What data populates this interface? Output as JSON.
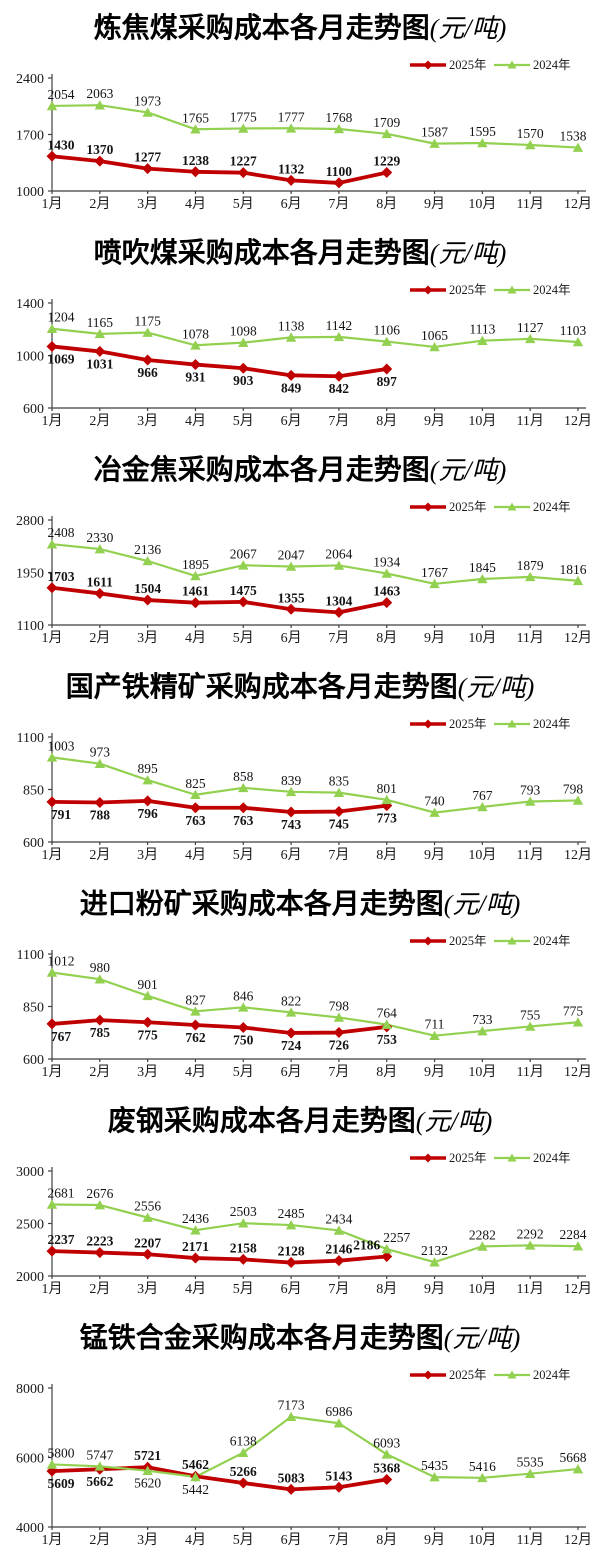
{
  "months": [
    "1月",
    "2月",
    "3月",
    "4月",
    "5月",
    "6月",
    "7月",
    "8月",
    "9月",
    "10月",
    "11月",
    "12月"
  ],
  "legend": {
    "series_2025": "2025年",
    "series_2024": "2024年"
  },
  "colors": {
    "red_2025": "#c00000",
    "green_2024": "#92d050",
    "axis": "#3f3f3f",
    "label_text": "#141414"
  },
  "chart_data": [
    {
      "type": "line",
      "title": "炼焦煤采购成本各月走势图",
      "unit": "(元/吨)",
      "ylabel": "元/吨",
      "ylim": [
        1000,
        2400
      ],
      "yticks": [
        2400,
        1700,
        1000
      ],
      "grid": false,
      "legend_position": "top-right",
      "series": [
        {
          "name": "2025年",
          "color": "#c00000",
          "marker": "diamond",
          "bold_labels": true,
          "label_pos": "above",
          "values": [
            1430,
            1370,
            1277,
            1238,
            1227,
            1132,
            1100,
            1229
          ]
        },
        {
          "name": "2024年",
          "color": "#92d050",
          "marker": "triangle",
          "bold_labels": false,
          "label_pos": "above",
          "values": [
            2054,
            2063,
            1973,
            1765,
            1775,
            1777,
            1768,
            1709,
            1587,
            1595,
            1570,
            1538
          ]
        }
      ]
    },
    {
      "type": "line",
      "title": "喷吹煤采购成本各月走势图",
      "unit": "(元/吨)",
      "ylabel": "元/吨",
      "ylim": [
        600,
        1400
      ],
      "yticks": [
        1400,
        1000,
        600
      ],
      "grid": false,
      "legend_position": "top-right",
      "series": [
        {
          "name": "2025年",
          "color": "#c00000",
          "marker": "diamond",
          "bold_labels": true,
          "label_pos": "below",
          "values": [
            1069,
            1031,
            966,
            931,
            903,
            849,
            842,
            897
          ]
        },
        {
          "name": "2024年",
          "color": "#92d050",
          "marker": "triangle",
          "bold_labels": false,
          "label_pos": "above",
          "values": [
            1204,
            1165,
            1175,
            1078,
            1098,
            1138,
            1142,
            1106,
            1065,
            1113,
            1127,
            1103
          ]
        }
      ]
    },
    {
      "type": "line",
      "title": "冶金焦采购成本各月走势图",
      "unit": "(元/吨)",
      "ylabel": "元/吨",
      "ylim": [
        1100,
        2800
      ],
      "yticks": [
        2800,
        1950,
        1100
      ],
      "grid": false,
      "legend_position": "top-right",
      "series": [
        {
          "name": "2025年",
          "color": "#c00000",
          "marker": "diamond",
          "bold_labels": true,
          "label_pos": "above",
          "values": [
            1703,
            1611,
            1504,
            1461,
            1475,
            1355,
            1304,
            1463
          ]
        },
        {
          "name": "2024年",
          "color": "#92d050",
          "marker": "triangle",
          "bold_labels": false,
          "label_pos": "above",
          "values": [
            2408,
            2330,
            2136,
            1895,
            2067,
            2047,
            2064,
            1934,
            1767,
            1845,
            1879,
            1816
          ]
        }
      ]
    },
    {
      "type": "line",
      "title": "国产铁精矿采购成本各月走势图",
      "unit": "(元/吨)",
      "ylabel": "元/吨",
      "ylim": [
        600,
        1100
      ],
      "yticks": [
        1100,
        850,
        600
      ],
      "grid": false,
      "legend_position": "top-right",
      "series": [
        {
          "name": "2025年",
          "color": "#c00000",
          "marker": "diamond",
          "bold_labels": true,
          "label_pos": "below",
          "values": [
            791,
            788,
            796,
            763,
            763,
            743,
            745,
            773
          ]
        },
        {
          "name": "2024年",
          "color": "#92d050",
          "marker": "triangle",
          "bold_labels": false,
          "label_pos": "above",
          "values": [
            1003,
            973,
            895,
            825,
            858,
            839,
            835,
            801,
            740,
            767,
            793,
            798
          ]
        }
      ]
    },
    {
      "type": "line",
      "title": "进口粉矿采购成本各月走势图",
      "unit": "(元/吨)",
      "ylabel": "元/吨",
      "ylim": [
        600,
        1100
      ],
      "yticks": [
        1100,
        850,
        600
      ],
      "grid": false,
      "legend_position": "top-right",
      "series": [
        {
          "name": "2025年",
          "color": "#c00000",
          "marker": "diamond",
          "bold_labels": true,
          "label_pos": "below",
          "values": [
            767,
            785,
            775,
            762,
            750,
            724,
            726,
            753
          ]
        },
        {
          "name": "2024年",
          "color": "#92d050",
          "marker": "triangle",
          "bold_labels": false,
          "label_pos": "above",
          "values": [
            1012,
            980,
            901,
            827,
            846,
            822,
            798,
            764,
            711,
            733,
            755,
            775
          ]
        }
      ]
    },
    {
      "type": "line",
      "title": "废钢采购成本各月走势图",
      "unit": "(元/吨)",
      "ylabel": "元/吨",
      "ylim": [
        2000,
        3000
      ],
      "yticks": [
        3000,
        2500,
        2000
      ],
      "grid": false,
      "legend_position": "top-right",
      "series": [
        {
          "name": "2025年",
          "color": "#c00000",
          "marker": "diamond",
          "bold_labels": true,
          "label_pos": "above",
          "label_dx": [
            0,
            0,
            0,
            0,
            0,
            0,
            0,
            -20
          ],
          "values": [
            2237,
            2223,
            2207,
            2171,
            2158,
            2128,
            2146,
            2186
          ]
        },
        {
          "name": "2024年",
          "color": "#92d050",
          "marker": "triangle",
          "bold_labels": false,
          "label_pos": "above",
          "label_dx": [
            0,
            0,
            0,
            0,
            0,
            0,
            0,
            10,
            0,
            0,
            0,
            0
          ],
          "values": [
            2681,
            2676,
            2556,
            2436,
            2503,
            2485,
            2434,
            2257,
            2132,
            2282,
            2292,
            2284
          ]
        }
      ]
    },
    {
      "type": "line",
      "title": "锰铁合金采购成本各月走势图",
      "unit": "(元/吨)",
      "ylabel": "元/吨",
      "ylim": [
        4000,
        8000
      ],
      "yticks": [
        8000,
        6000,
        4000
      ],
      "grid": false,
      "legend_position": "top-right",
      "series": [
        {
          "name": "2025年",
          "color": "#c00000",
          "marker": "diamond",
          "bold_labels": true,
          "label_pos": [
            "below",
            "below",
            "above",
            "above",
            "above",
            "above",
            "above",
            "above"
          ],
          "values": [
            5609,
            5662,
            5721,
            5462,
            5266,
            5083,
            5143,
            5368
          ]
        },
        {
          "name": "2024年",
          "color": "#92d050",
          "marker": "triangle",
          "bold_labels": false,
          "label_pos": [
            "above",
            "above",
            "below",
            "below",
            "above",
            "above",
            "above",
            "above",
            "above",
            "above",
            "above",
            "above"
          ],
          "values": [
            5800,
            5747,
            5620,
            5442,
            6138,
            7173,
            6986,
            6093,
            5435,
            5416,
            5535,
            5668
          ]
        }
      ]
    }
  ]
}
